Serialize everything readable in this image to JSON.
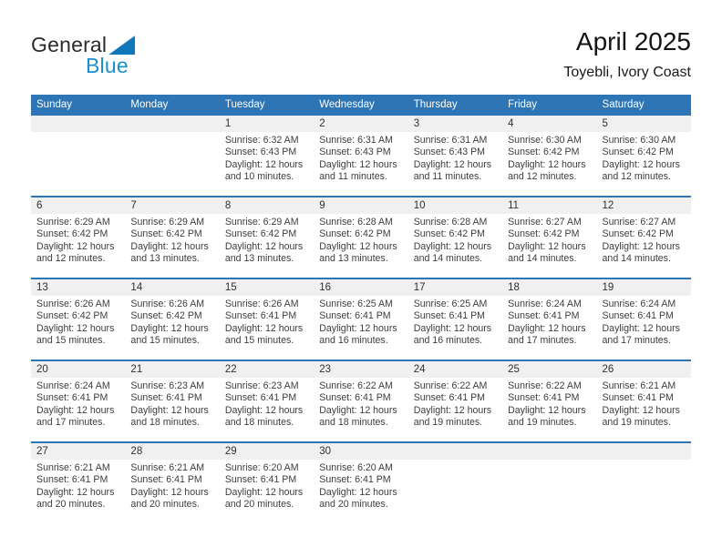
{
  "logo": {
    "general": "General",
    "blue": "Blue"
  },
  "header": {
    "title": "April 2025",
    "subtitle": "Toyebli, Ivory Coast"
  },
  "colors": {
    "header_bar": "#2e75b6",
    "week_border": "#2e75b6",
    "number_band": "#f0f0f0",
    "logo_text_blue": "#1b8fce",
    "logo_triangle_blue": "#1177bb",
    "body_text": "#3d3d3d"
  },
  "weekdays": [
    "Sunday",
    "Monday",
    "Tuesday",
    "Wednesday",
    "Thursday",
    "Friday",
    "Saturday"
  ],
  "weeks": [
    [
      {
        "day": ""
      },
      {
        "day": ""
      },
      {
        "day": "1",
        "sunrise": "Sunrise: 6:32 AM",
        "sunset": "Sunset: 6:43 PM",
        "daylight": "Daylight: 12 hours and 10 minutes."
      },
      {
        "day": "2",
        "sunrise": "Sunrise: 6:31 AM",
        "sunset": "Sunset: 6:43 PM",
        "daylight": "Daylight: 12 hours and 11 minutes."
      },
      {
        "day": "3",
        "sunrise": "Sunrise: 6:31 AM",
        "sunset": "Sunset: 6:43 PM",
        "daylight": "Daylight: 12 hours and 11 minutes."
      },
      {
        "day": "4",
        "sunrise": "Sunrise: 6:30 AM",
        "sunset": "Sunset: 6:42 PM",
        "daylight": "Daylight: 12 hours and 12 minutes."
      },
      {
        "day": "5",
        "sunrise": "Sunrise: 6:30 AM",
        "sunset": "Sunset: 6:42 PM",
        "daylight": "Daylight: 12 hours and 12 minutes."
      }
    ],
    [
      {
        "day": "6",
        "sunrise": "Sunrise: 6:29 AM",
        "sunset": "Sunset: 6:42 PM",
        "daylight": "Daylight: 12 hours and 12 minutes."
      },
      {
        "day": "7",
        "sunrise": "Sunrise: 6:29 AM",
        "sunset": "Sunset: 6:42 PM",
        "daylight": "Daylight: 12 hours and 13 minutes."
      },
      {
        "day": "8",
        "sunrise": "Sunrise: 6:29 AM",
        "sunset": "Sunset: 6:42 PM",
        "daylight": "Daylight: 12 hours and 13 minutes."
      },
      {
        "day": "9",
        "sunrise": "Sunrise: 6:28 AM",
        "sunset": "Sunset: 6:42 PM",
        "daylight": "Daylight: 12 hours and 13 minutes."
      },
      {
        "day": "10",
        "sunrise": "Sunrise: 6:28 AM",
        "sunset": "Sunset: 6:42 PM",
        "daylight": "Daylight: 12 hours and 14 minutes."
      },
      {
        "day": "11",
        "sunrise": "Sunrise: 6:27 AM",
        "sunset": "Sunset: 6:42 PM",
        "daylight": "Daylight: 12 hours and 14 minutes."
      },
      {
        "day": "12",
        "sunrise": "Sunrise: 6:27 AM",
        "sunset": "Sunset: 6:42 PM",
        "daylight": "Daylight: 12 hours and 14 minutes."
      }
    ],
    [
      {
        "day": "13",
        "sunrise": "Sunrise: 6:26 AM",
        "sunset": "Sunset: 6:42 PM",
        "daylight": "Daylight: 12 hours and 15 minutes."
      },
      {
        "day": "14",
        "sunrise": "Sunrise: 6:26 AM",
        "sunset": "Sunset: 6:42 PM",
        "daylight": "Daylight: 12 hours and 15 minutes."
      },
      {
        "day": "15",
        "sunrise": "Sunrise: 6:26 AM",
        "sunset": "Sunset: 6:41 PM",
        "daylight": "Daylight: 12 hours and 15 minutes."
      },
      {
        "day": "16",
        "sunrise": "Sunrise: 6:25 AM",
        "sunset": "Sunset: 6:41 PM",
        "daylight": "Daylight: 12 hours and 16 minutes."
      },
      {
        "day": "17",
        "sunrise": "Sunrise: 6:25 AM",
        "sunset": "Sunset: 6:41 PM",
        "daylight": "Daylight: 12 hours and 16 minutes."
      },
      {
        "day": "18",
        "sunrise": "Sunrise: 6:24 AM",
        "sunset": "Sunset: 6:41 PM",
        "daylight": "Daylight: 12 hours and 17 minutes."
      },
      {
        "day": "19",
        "sunrise": "Sunrise: 6:24 AM",
        "sunset": "Sunset: 6:41 PM",
        "daylight": "Daylight: 12 hours and 17 minutes."
      }
    ],
    [
      {
        "day": "20",
        "sunrise": "Sunrise: 6:24 AM",
        "sunset": "Sunset: 6:41 PM",
        "daylight": "Daylight: 12 hours and 17 minutes."
      },
      {
        "day": "21",
        "sunrise": "Sunrise: 6:23 AM",
        "sunset": "Sunset: 6:41 PM",
        "daylight": "Daylight: 12 hours and 18 minutes."
      },
      {
        "day": "22",
        "sunrise": "Sunrise: 6:23 AM",
        "sunset": "Sunset: 6:41 PM",
        "daylight": "Daylight: 12 hours and 18 minutes."
      },
      {
        "day": "23",
        "sunrise": "Sunrise: 6:22 AM",
        "sunset": "Sunset: 6:41 PM",
        "daylight": "Daylight: 12 hours and 18 minutes."
      },
      {
        "day": "24",
        "sunrise": "Sunrise: 6:22 AM",
        "sunset": "Sunset: 6:41 PM",
        "daylight": "Daylight: 12 hours and 19 minutes."
      },
      {
        "day": "25",
        "sunrise": "Sunrise: 6:22 AM",
        "sunset": "Sunset: 6:41 PM",
        "daylight": "Daylight: 12 hours and 19 minutes."
      },
      {
        "day": "26",
        "sunrise": "Sunrise: 6:21 AM",
        "sunset": "Sunset: 6:41 PM",
        "daylight": "Daylight: 12 hours and 19 minutes."
      }
    ],
    [
      {
        "day": "27",
        "sunrise": "Sunrise: 6:21 AM",
        "sunset": "Sunset: 6:41 PM",
        "daylight": "Daylight: 12 hours and 20 minutes."
      },
      {
        "day": "28",
        "sunrise": "Sunrise: 6:21 AM",
        "sunset": "Sunset: 6:41 PM",
        "daylight": "Daylight: 12 hours and 20 minutes."
      },
      {
        "day": "29",
        "sunrise": "Sunrise: 6:20 AM",
        "sunset": "Sunset: 6:41 PM",
        "daylight": "Daylight: 12 hours and 20 minutes."
      },
      {
        "day": "30",
        "sunrise": "Sunrise: 6:20 AM",
        "sunset": "Sunset: 6:41 PM",
        "daylight": "Daylight: 12 hours and 20 minutes."
      },
      {
        "day": ""
      },
      {
        "day": ""
      },
      {
        "day": ""
      }
    ]
  ]
}
